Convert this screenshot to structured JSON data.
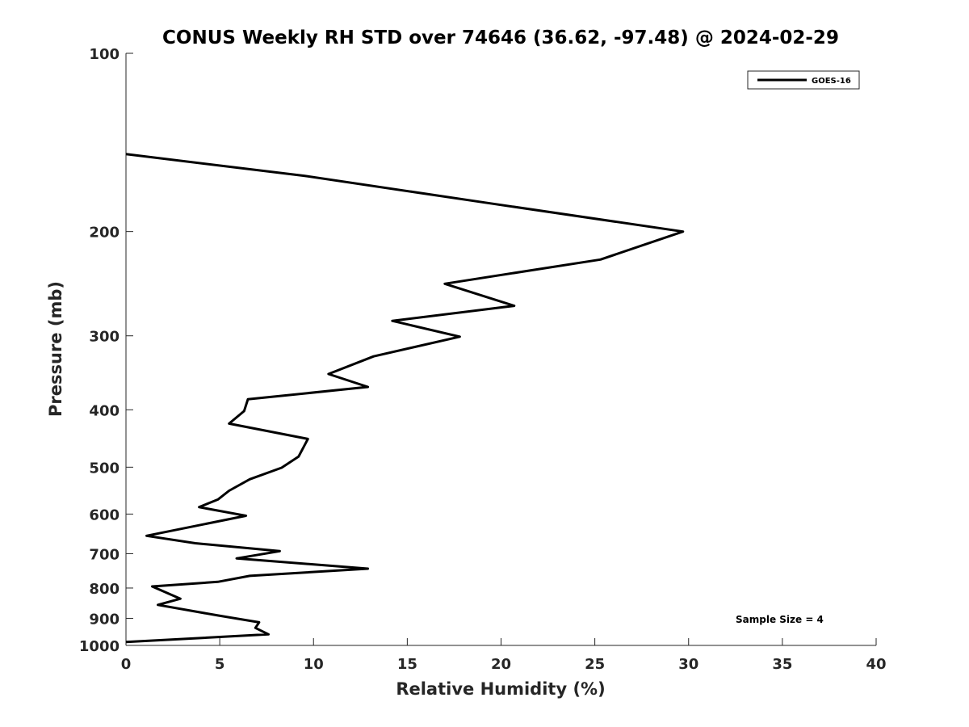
{
  "chart_data": {
    "type": "line",
    "title": "CONUS Weekly RH STD over 74646 (36.62, -97.48) @ 2024-02-29",
    "xlabel": "Relative Humidity (%)",
    "ylabel": "Pressure (mb)",
    "xlim": [
      0,
      40
    ],
    "ylim": [
      100,
      1000
    ],
    "y_scale": "log",
    "y_reversed": true,
    "x_ticks": [
      0,
      5,
      10,
      15,
      20,
      25,
      30,
      35,
      40
    ],
    "x_tick_labels": [
      "0",
      "5",
      "10",
      "15",
      "20",
      "25",
      "30",
      "35",
      "40"
    ],
    "y_ticks": [
      100,
      200,
      300,
      400,
      500,
      600,
      700,
      800,
      900,
      1000
    ],
    "y_tick_labels": [
      "100",
      "200",
      "300",
      "400",
      "500",
      "600",
      "700",
      "800",
      "900",
      "1000"
    ],
    "grid": false,
    "legend_position": "top-right",
    "series": [
      {
        "name": "GOES-16",
        "color": "#000000",
        "x": [
          0.0,
          9.5,
          19.3,
          29.7,
          25.3,
          17.0,
          20.7,
          14.2,
          17.8,
          13.2,
          10.8,
          12.9,
          6.5,
          6.3,
          5.5,
          9.7,
          9.2,
          8.3,
          6.6,
          5.5,
          4.9,
          3.9,
          6.4,
          1.1,
          3.7,
          8.2,
          5.9,
          12.9,
          6.6,
          4.9,
          1.4,
          2.9,
          1.7,
          4.9,
          7.1,
          6.9,
          7.6,
          0.0
        ],
        "y": [
          148,
          161,
          179,
          200,
          223,
          245,
          267,
          283,
          301,
          325,
          348,
          366,
          384,
          402,
          422,
          448,
          480,
          501,
          524,
          548,
          567,
          584,
          604,
          653,
          672,
          693,
          713,
          742,
          763,
          781,
          795,
          834,
          854,
          890,
          914,
          934,
          958,
          987
        ]
      }
    ],
    "annotations": [
      "Sample Size = 4"
    ]
  }
}
